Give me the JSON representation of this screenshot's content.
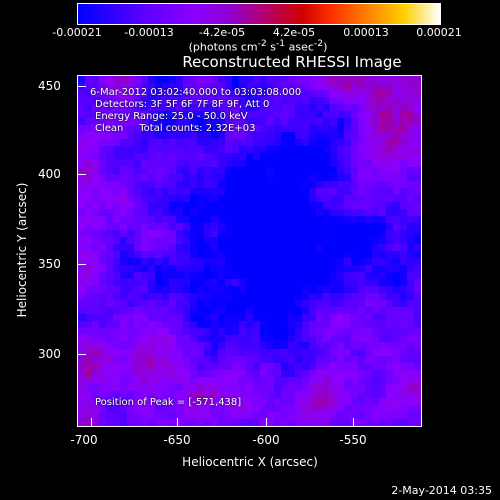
{
  "colorbar": {
    "ticks": [
      "-0.00021",
      "-0.00013",
      "-4.2e-05",
      "4.2e-05",
      "0.00013",
      "0.00021"
    ],
    "units_html": "(photons cm<sup>-2</sup> s<sup>-1</sup> asec<sup>-2</sup>)",
    "range": [
      -0.00021,
      0.00021
    ]
  },
  "title": "Reconstructed RHESSI Image",
  "annotations": {
    "time": "6-Mar-2012 03:02:40.000 to 03:03:08.000",
    "detectors": "Detectors: 3F 5F 6F 7F 8F 9F, Att 0",
    "energy": "Energy Range: 25.0 - 50.0 keV",
    "clean": "Clean     Total counts: 2.32E+03",
    "peak": "Position of Peak = [-571,438]"
  },
  "axes": {
    "xlabel": "Heliocentric X (arcsec)",
    "ylabel": "Heliocentric Y (arcsec)",
    "xticks": [
      "-700",
      "-650",
      "-600",
      "-550"
    ],
    "yticks": [
      "450",
      "400",
      "350",
      "300"
    ],
    "xlim": [
      -712,
      -513
    ],
    "ylim": [
      258,
      456
    ]
  },
  "footer": {
    "date": "2-May-2014 03:35"
  }
}
